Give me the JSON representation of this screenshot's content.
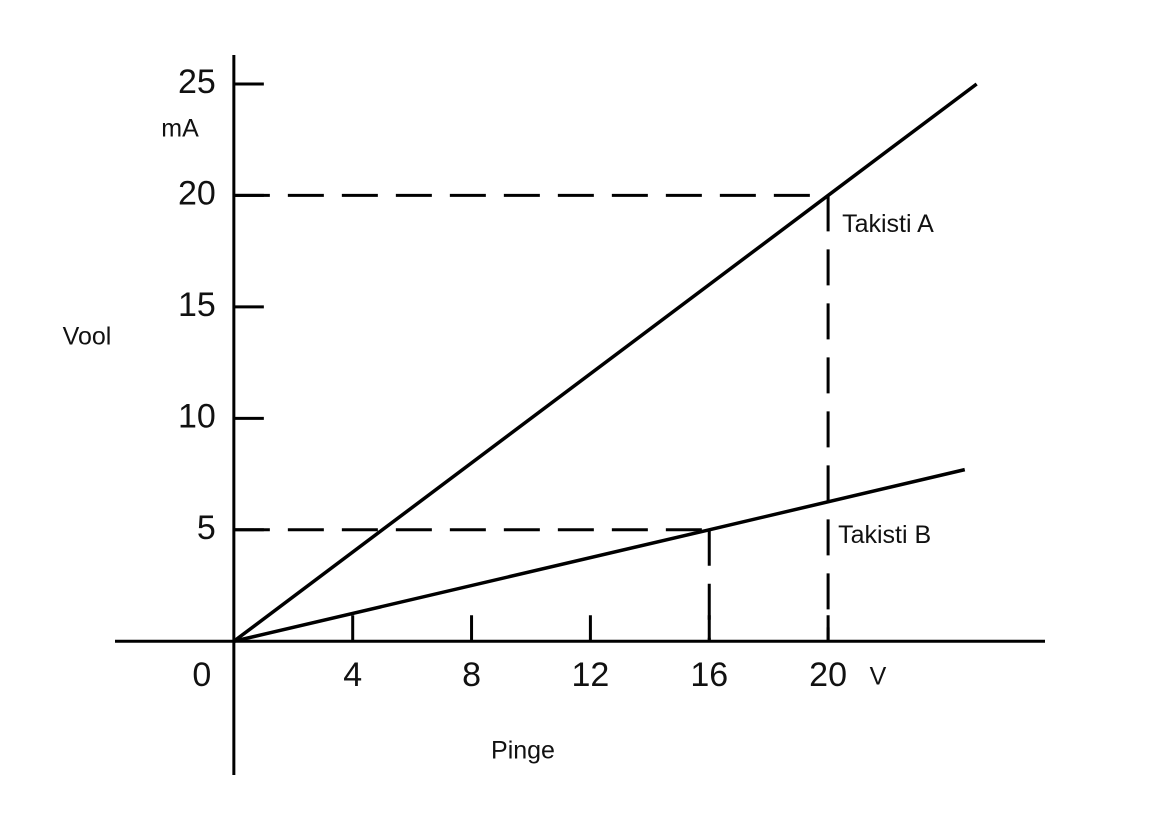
{
  "chart_data": {
    "type": "line",
    "x_label": "Pinge",
    "y_label": "Vool",
    "x_unit": "V",
    "y_unit": "mA",
    "xlim": [
      -4,
      27.3
    ],
    "ylim": [
      -6,
      26.3
    ],
    "xticks": [
      0,
      4,
      8,
      12,
      16,
      20
    ],
    "yticks": [
      5,
      10,
      15,
      20,
      25
    ],
    "series": [
      {
        "name": "Takisti A",
        "color": "#000000",
        "x": [
          0,
          20,
          25
        ],
        "values": [
          0,
          20,
          25
        ]
      },
      {
        "name": "Takisti B",
        "color": "#000000",
        "x": [
          0,
          16,
          24.6
        ],
        "values": [
          0,
          5,
          7.7
        ]
      }
    ],
    "guides": [
      {
        "x": 20,
        "y": 20
      },
      {
        "x": 16,
        "y": 5
      }
    ]
  }
}
